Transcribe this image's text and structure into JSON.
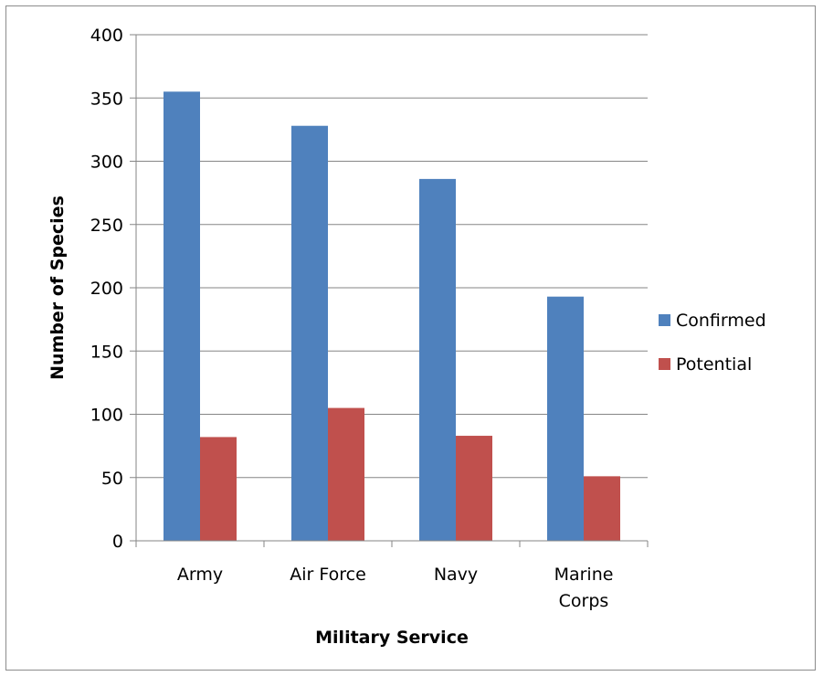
{
  "chart_data": {
    "type": "bar",
    "categories": [
      [
        "Army"
      ],
      [
        "Air Force"
      ],
      [
        "Navy"
      ],
      [
        "Marine",
        "Corps"
      ]
    ],
    "series": [
      {
        "name": "Confirmed",
        "color": "#4F81BD",
        "values": [
          355,
          328,
          286,
          193
        ]
      },
      {
        "name": "Potential",
        "color": "#C0504D",
        "values": [
          82,
          105,
          83,
          51
        ]
      }
    ],
    "xlabel": "Military Service",
    "ylabel": "Number of Species",
    "ylim": [
      0,
      400
    ],
    "yticks": [
      0,
      50,
      100,
      150,
      200,
      250,
      300,
      350,
      400
    ],
    "grid": true,
    "legend_position": "right"
  }
}
